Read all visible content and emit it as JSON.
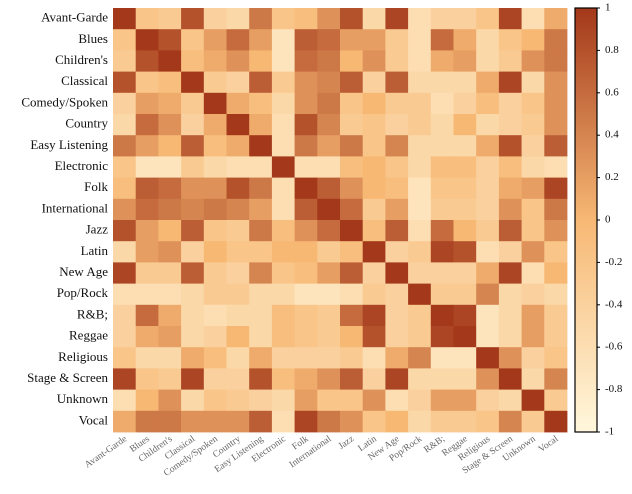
{
  "chart_data": {
    "type": "heatmap",
    "categories": [
      "Avant-Garde",
      "Blues",
      "Children's",
      "Classical",
      "Comedy/Spoken",
      "Country",
      "Easy Listening",
      "Electronic",
      "Folk",
      "International",
      "Jazz",
      "Latin",
      "New Age",
      "Pop/Rock",
      "R&B;",
      "Reggae",
      "Religious",
      "Stage & Screen",
      "Unknown",
      "Vocal"
    ],
    "values": [
      [
        1,
        -0.2,
        -0.3,
        0.8,
        -0.4,
        -0.5,
        0.5,
        -0.2,
        -0.1,
        0.3,
        0.8,
        -0.5,
        0.9,
        -0.6,
        -0.4,
        -0.4,
        -0.2,
        0.9,
        -0.6,
        0.1
      ],
      [
        -0.2,
        1,
        0.8,
        -0.2,
        0.2,
        0.6,
        0.2,
        -0.7,
        0.7,
        0.6,
        0.2,
        0.2,
        -0.3,
        -0.6,
        0.6,
        0.1,
        -0.5,
        -0.2,
        0,
        0.5
      ],
      [
        -0.3,
        0.8,
        1,
        -0.1,
        0.1,
        0.3,
        0,
        -0.7,
        0.6,
        0.5,
        0,
        0.3,
        -0.3,
        -0.6,
        0.1,
        0.2,
        -0.5,
        -0.3,
        0.3,
        0.5
      ],
      [
        0.8,
        -0.2,
        -0.1,
        1,
        -0.3,
        -0.4,
        0.7,
        -0.3,
        0.3,
        0.4,
        0.7,
        -0.4,
        0.7,
        -0.5,
        -0.5,
        -0.5,
        0.1,
        0.9,
        -0.5,
        0.3
      ],
      [
        -0.4,
        0.2,
        0.1,
        -0.3,
        1,
        0.1,
        -0.1,
        -0.5,
        0.3,
        0.5,
        -0.2,
        0,
        -0.3,
        -0.3,
        -0.6,
        -0.4,
        -0.1,
        -0.4,
        -0.2,
        0.3
      ],
      [
        -0.5,
        0.6,
        0.3,
        -0.4,
        0.1,
        1,
        0.1,
        -0.6,
        0.8,
        0.4,
        -0.3,
        -0.2,
        -0.4,
        -0.3,
        -0.5,
        0,
        -0.5,
        -0.4,
        -0.3,
        0.3
      ],
      [
        0.5,
        0.2,
        0,
        0.7,
        -0.1,
        0.1,
        1,
        -0.6,
        0.5,
        0.2,
        0.5,
        -0.2,
        0.4,
        -0.5,
        -0.5,
        -0.5,
        0.1,
        0.8,
        -0.4,
        0.7
      ],
      [
        -0.2,
        -0.7,
        -0.7,
        -0.3,
        -0.5,
        -0.6,
        -0.6,
        1,
        -0.6,
        -0.6,
        -0.1,
        0,
        -0.2,
        -0.5,
        -0.1,
        -0.1,
        -0.4,
        -0.1,
        -0.5,
        -0.6
      ],
      [
        -0.1,
        0.7,
        0.6,
        0.3,
        0.3,
        0.8,
        0.5,
        -0.6,
        1,
        0.7,
        0.3,
        0,
        -0.1,
        -0.7,
        -0.2,
        -0.2,
        -0.4,
        0.1,
        0.2,
        0.9
      ],
      [
        0.3,
        0.6,
        0.5,
        0.4,
        0.5,
        0.4,
        0.2,
        -0.6,
        0.7,
        1,
        0.6,
        -0.3,
        0.2,
        -0.7,
        -0.3,
        -0.3,
        -0.4,
        0.3,
        -0.2,
        0.5
      ],
      [
        0.8,
        0.2,
        0,
        0.7,
        -0.2,
        -0.3,
        0.5,
        -0.1,
        0.3,
        0.6,
        1,
        -0.1,
        0.7,
        -0.6,
        0.6,
        0,
        -0.3,
        0.7,
        -0.2,
        0.3
      ],
      [
        -0.5,
        0.2,
        0.3,
        -0.4,
        0,
        -0.2,
        -0.2,
        0,
        0,
        -0.3,
        -0.1,
        1,
        -0.4,
        -0.3,
        0.9,
        0.8,
        -0.6,
        -0.4,
        0.3,
        -0.2
      ],
      [
        0.9,
        -0.3,
        -0.3,
        0.7,
        -0.3,
        -0.4,
        0.4,
        -0.2,
        -0.1,
        0.2,
        0.7,
        -0.4,
        1,
        -0.4,
        -0.4,
        -0.4,
        0.1,
        0.9,
        -0.6,
        0
      ],
      [
        -0.6,
        -0.6,
        -0.6,
        -0.5,
        -0.3,
        -0.3,
        -0.5,
        -0.5,
        -0.7,
        -0.7,
        -0.6,
        -0.3,
        -0.4,
        1,
        -0.3,
        -0.3,
        0.4,
        -0.5,
        -0.4,
        -0.5
      ],
      [
        -0.4,
        0.6,
        0.1,
        -0.5,
        -0.6,
        -0.5,
        -0.5,
        -0.1,
        -0.2,
        -0.3,
        0.6,
        0.9,
        -0.4,
        -0.3,
        1,
        0.9,
        -0.7,
        -0.5,
        0.2,
        -0.3
      ],
      [
        -0.4,
        0.1,
        0.2,
        -0.5,
        -0.4,
        0,
        -0.5,
        -0.1,
        -0.2,
        -0.3,
        0,
        0.8,
        -0.4,
        -0.3,
        0.9,
        1,
        -0.7,
        -0.5,
        0.2,
        -0.3
      ],
      [
        -0.2,
        -0.5,
        -0.5,
        0.1,
        -0.1,
        -0.5,
        0.1,
        -0.4,
        -0.4,
        -0.4,
        -0.3,
        -0.6,
        0.1,
        0.4,
        -0.7,
        -0.7,
        1,
        0.3,
        -0.4,
        -0.2
      ],
      [
        0.9,
        -0.2,
        -0.3,
        0.9,
        -0.4,
        -0.4,
        0.8,
        -0.1,
        0.1,
        0.3,
        0.7,
        -0.4,
        0.9,
        -0.5,
        -0.5,
        -0.5,
        0.3,
        1,
        -0.5,
        0.4
      ],
      [
        -0.6,
        0,
        0.3,
        -0.5,
        -0.2,
        -0.3,
        -0.4,
        -0.5,
        0.2,
        -0.2,
        -0.2,
        0.3,
        -0.6,
        -0.4,
        0.2,
        0.2,
        -0.4,
        -0.5,
        1,
        -0.3
      ],
      [
        0.1,
        0.5,
        0.5,
        0.3,
        0.3,
        0.3,
        0.7,
        -0.6,
        0.9,
        0.5,
        0.3,
        -0.2,
        0,
        -0.5,
        -0.3,
        -0.3,
        -0.2,
        0.4,
        -0.3,
        1
      ]
    ],
    "colormap": [
      "#fff7dc",
      "#f7b874",
      "#a3381a"
    ],
    "colorbar": {
      "lim": [
        -1,
        1
      ],
      "ticks": [
        1,
        0.8,
        0.6,
        0.4,
        0.2,
        0,
        -0.2,
        -0.4,
        -0.6,
        -0.8,
        -1
      ]
    }
  }
}
